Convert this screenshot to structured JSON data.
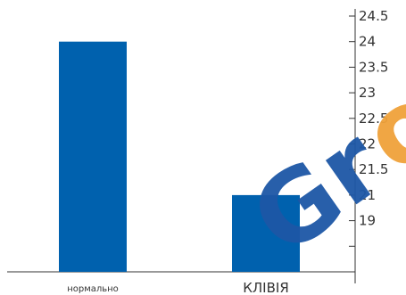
{
  "chart_data": {
    "type": "bar",
    "categories": [
      "нормально",
      "КЛІВІЯ"
    ],
    "values": [
      24,
      21
    ],
    "y_ticks": [
      "19",
      "21",
      "21.5",
      "22",
      "22.5",
      "23",
      "23.5",
      "24",
      "24.5"
    ],
    "y_axis_position": "right",
    "grid": false,
    "legend": "none",
    "title": "",
    "xlabel": "",
    "ylabel": ""
  },
  "colors": {
    "bar": "#0061ae",
    "axis": "#333333",
    "text": "#333333",
    "watermark_orange": "#f0a23a",
    "watermark_blue": "#1d57a6"
  },
  "watermark": {
    "text": "Gro"
  }
}
